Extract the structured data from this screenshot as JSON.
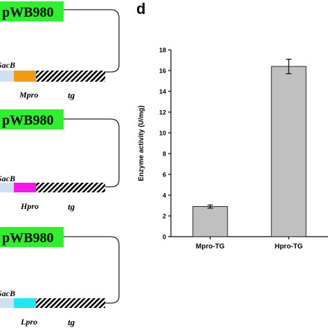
{
  "constructs": [
    {
      "plasmid": "pWB980",
      "sacb": "SacB",
      "promoter": "Mpro",
      "gene": "tg",
      "promoter_color": "#f39a13"
    },
    {
      "plasmid": "pWB980",
      "sacb": "SacB",
      "promoter": "Hpro",
      "gene": "tg",
      "promoter_color": "#ff16ec"
    },
    {
      "plasmid": "pWB980",
      "sacb": "SacB",
      "promoter": "Lpro",
      "gene": "tg",
      "promoter_color": "#1ee8f5"
    }
  ],
  "colors": {
    "plasmid_box": "#2ef02e",
    "sacb_box": "#cfe0f1",
    "bar_fill": "#c0c0c0"
  },
  "panel_label": "d",
  "chart_data": {
    "type": "bar",
    "categories": [
      "Mpro-TG",
      "Hpro-TG"
    ],
    "values": [
      2.9,
      16.4
    ],
    "errors": [
      0.15,
      0.7
    ],
    "ylabel": "Enzyme activity (U/mg)",
    "xlabel": "",
    "ylim": [
      0,
      18
    ],
    "yticks": [
      0,
      2,
      4,
      6,
      8,
      10,
      12,
      14,
      16,
      18
    ],
    "grid": false
  }
}
